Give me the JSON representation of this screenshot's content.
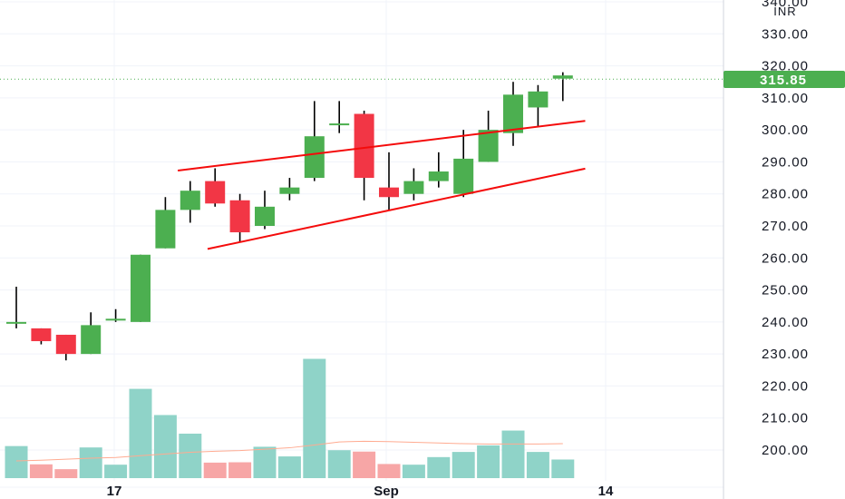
{
  "chart_data": {
    "type": "candlestick",
    "currency": "INR",
    "last_price": 315.85,
    "colors": {
      "up": "#4caf50",
      "down": "#f23645",
      "volume_up": "#8fd3c8",
      "volume_down": "#f7a6a6",
      "trendline": "#f40b0b",
      "volume_ma": "#ffab91",
      "last_price": "#4caf50",
      "grid": "#f0f3fa"
    },
    "y_axis": {
      "ticks": [
        "200.00",
        "210.00",
        "220.00",
        "230.00",
        "240.00",
        "250.00",
        "260.00",
        "270.00",
        "280.00",
        "290.00",
        "300.00",
        "310.00",
        "320.00",
        "330.00",
        "340.00"
      ],
      "ylim": [
        195,
        342
      ]
    },
    "x_axis": {
      "labels": [
        "17",
        "Sep",
        "14"
      ]
    },
    "candles": [
      {
        "o": 240,
        "h": 251,
        "l": 238,
        "c": 240
      },
      {
        "o": 238,
        "h": 238,
        "l": 233,
        "c": 234
      },
      {
        "o": 236,
        "h": 236,
        "l": 228,
        "c": 230
      },
      {
        "o": 230,
        "h": 243,
        "l": 230,
        "c": 239
      },
      {
        "o": 241,
        "h": 244,
        "l": 240,
        "c": 241
      },
      {
        "o": 240,
        "h": 261,
        "l": 240,
        "c": 261
      },
      {
        "o": 263,
        "h": 279,
        "l": 263,
        "c": 275
      },
      {
        "o": 275,
        "h": 284,
        "l": 271,
        "c": 281
      },
      {
        "o": 284,
        "h": 288,
        "l": 276,
        "c": 277
      },
      {
        "o": 278,
        "h": 280,
        "l": 265,
        "c": 268
      },
      {
        "o": 270,
        "h": 281,
        "l": 269,
        "c": 276
      },
      {
        "o": 280,
        "h": 285,
        "l": 278,
        "c": 282
      },
      {
        "o": 285,
        "h": 309,
        "l": 284,
        "c": 298
      },
      {
        "o": 302,
        "h": 309,
        "l": 299,
        "c": 302
      },
      {
        "o": 305,
        "h": 306,
        "l": 278,
        "c": 285
      },
      {
        "o": 282,
        "h": 293,
        "l": 275,
        "c": 279
      },
      {
        "o": 280,
        "h": 288,
        "l": 278,
        "c": 284
      },
      {
        "o": 284,
        "h": 293,
        "l": 282,
        "c": 287
      },
      {
        "o": 280,
        "h": 300,
        "l": 279,
        "c": 291
      },
      {
        "o": 290,
        "h": 306,
        "l": 290,
        "c": 300
      },
      {
        "o": 299,
        "h": 315,
        "l": 295,
        "c": 311
      },
      {
        "o": 307,
        "h": 314,
        "l": 301,
        "c": 312
      },
      {
        "o": 316,
        "h": 318,
        "l": 309,
        "c": 317
      }
    ],
    "volumes": [
      0.93,
      0.4,
      0.26,
      0.89,
      0.39,
      2.59,
      1.83,
      1.29,
      0.45,
      0.46,
      0.91,
      0.63,
      3.46,
      0.81,
      0.77,
      0.41,
      0.39,
      0.61,
      0.76,
      0.95,
      1.38,
      0.76,
      0.54
    ],
    "volume_ma": [
      0.5,
      0.52,
      0.55,
      0.58,
      0.6,
      0.65,
      0.7,
      0.75,
      0.78,
      0.8,
      0.84,
      0.88,
      0.96,
      1.05,
      1.07,
      1.06,
      1.04,
      1.02,
      1.0,
      0.99,
      0.99,
      0.99,
      1.0
    ],
    "trendlines": [
      {
        "from": {
          "i": 6.5,
          "p": 287.3
        },
        "to": {
          "i": 22.9,
          "p": 302.8
        }
      },
      {
        "from": {
          "i": 7.7,
          "p": 262.8
        },
        "to": {
          "i": 22.9,
          "p": 287.9
        }
      }
    ]
  }
}
